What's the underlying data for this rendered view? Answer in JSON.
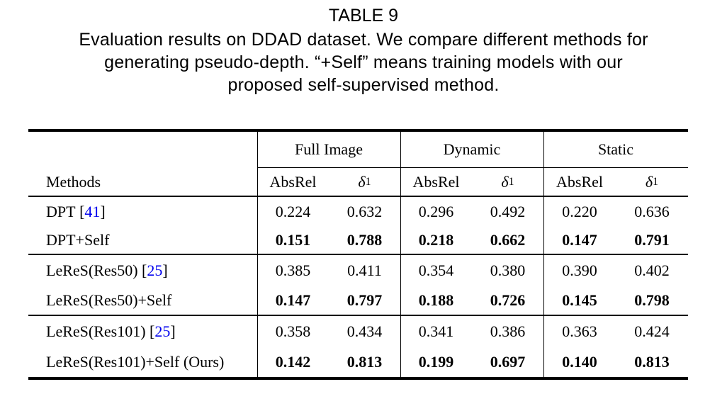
{
  "page": {
    "title": "TABLE 9",
    "caption_lines": [
      "Evaluation results on DDAD dataset. We compare different methods for",
      "generating pseudo-depth. “+Self” means training models with our",
      "proposed self-supervised method."
    ]
  },
  "table": {
    "methods_header": "Methods",
    "group_headers": [
      "Full Image",
      "Dynamic",
      "Static"
    ],
    "metric": {
      "absrel": "AbsRel",
      "delta_base": "δ",
      "delta_sub": "1"
    },
    "cite_open": " [",
    "cite_close": "]",
    "colors": {
      "citation": "#0000EE",
      "text": "#000000",
      "background": "#FFFFFF"
    },
    "rows": [
      {
        "method": "DPT",
        "cite": "41",
        "bold": false,
        "values": [
          "0.224",
          "0.632",
          "0.296",
          "0.492",
          "0.220",
          "0.636"
        ]
      },
      {
        "method": "DPT+Self",
        "bold": true,
        "values": [
          "0.151",
          "0.788",
          "0.218",
          "0.662",
          "0.147",
          "0.791"
        ]
      },
      {
        "method": "LeReS(Res50)",
        "cite": "25",
        "bold": false,
        "values": [
          "0.385",
          "0.411",
          "0.354",
          "0.380",
          "0.390",
          "0.402"
        ]
      },
      {
        "method": "LeReS(Res50)+Self",
        "bold": true,
        "values": [
          "0.147",
          "0.797",
          "0.188",
          "0.726",
          "0.145",
          "0.798"
        ]
      },
      {
        "method": "LeReS(Res101)",
        "cite": "25",
        "bold": false,
        "values": [
          "0.358",
          "0.434",
          "0.341",
          "0.386",
          "0.363",
          "0.424"
        ]
      },
      {
        "method": "LeReS(Res101)+Self (Ours)",
        "bold": true,
        "values": [
          "0.142",
          "0.813",
          "0.199",
          "0.697",
          "0.140",
          "0.813"
        ]
      }
    ]
  }
}
